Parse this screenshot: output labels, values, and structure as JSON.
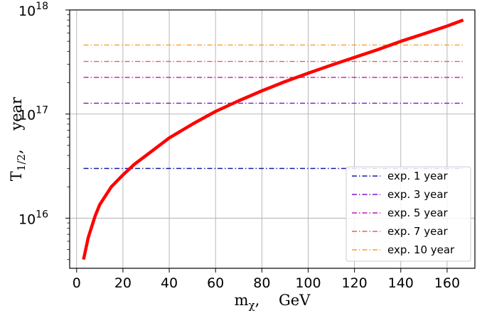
{
  "chart_data": {
    "type": "line",
    "xlabel_main": "m",
    "xlabel_sub": "χ",
    "xlabel_unit": ",    GeV",
    "ylabel_main": "T",
    "ylabel_sub": "1/2",
    "ylabel_unit": ",    year",
    "xlim": [
      -3,
      172
    ],
    "ylim": [
      3300000000000000.0,
      1e+18
    ],
    "yscale": "log",
    "grid": true,
    "legend_position": "lower-right",
    "x_ticks": [
      "0",
      "20",
      "40",
      "60",
      "80",
      "100",
      "120",
      "140",
      "160"
    ],
    "y_ticks": [
      {
        "base": "10",
        "exp": "16",
        "value": 1e+16
      },
      {
        "base": "10",
        "exp": "17",
        "value": 1e+17
      },
      {
        "base": "10",
        "exp": "18",
        "value": 1e+18
      }
    ],
    "curve": {
      "color": "#ff0000",
      "x": [
        3,
        5,
        8,
        10,
        15,
        20,
        25,
        30,
        40,
        50,
        60,
        70,
        80,
        90,
        100,
        110,
        120,
        130,
        140,
        150,
        160,
        167
      ],
      "y": [
        4000000000000000.0,
        6500000000000000.0,
        1.05e+16,
        1.35e+16,
        2e+16,
        2.6e+16,
        3.3e+16,
        4e+16,
        5.9e+16,
        8e+16,
        1.06e+17,
        1.34e+17,
        1.67e+17,
        2.05e+17,
        2.47e+17,
        2.95e+17,
        3.5e+17,
        4.15e+17,
        5e+17,
        5.9e+17,
        7e+17,
        8e+17
      ]
    },
    "series": [
      {
        "name": "exp. 1 year",
        "value": 3e+16,
        "color": "#1a1aa6"
      },
      {
        "name": "exp. 3 year",
        "value": 1.27e+17,
        "color": "#7a16c8"
      },
      {
        "name": "exp. 5 year",
        "value": 2.25e+17,
        "color": "#c21aa8"
      },
      {
        "name": "exp. 7 year",
        "value": 3.2e+17,
        "color": "#f05a5a"
      },
      {
        "name": "exp. 10 year",
        "value": 4.6e+17,
        "color": "#f5a030"
      }
    ],
    "line_x_range": [
      3,
      167
    ]
  }
}
